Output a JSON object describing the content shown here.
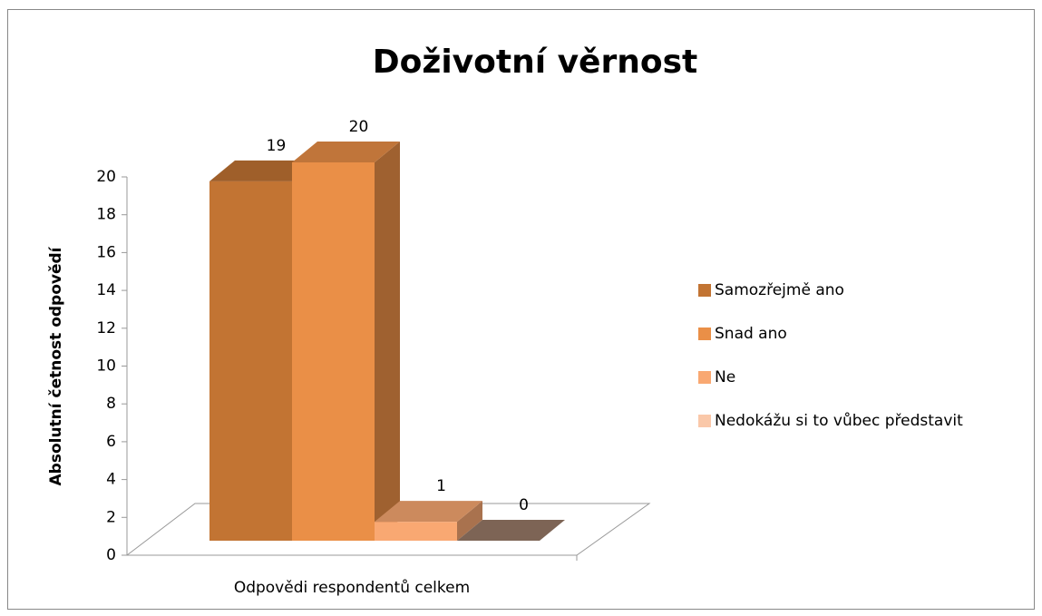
{
  "chart_data": {
    "type": "bar3d",
    "title": "Doživotní věrnost",
    "y_label": "Absolutní četnost odpovědí",
    "categories": [
      "Odpovědi respondentů celkem"
    ],
    "series": [
      {
        "name": "Samozřejmě ano",
        "color": "#c27433",
        "values": [
          19
        ]
      },
      {
        "name": "Snad ano",
        "color": "#ea8f47",
        "values": [
          20
        ]
      },
      {
        "name": "Ne",
        "color": "#f9a872",
        "values": [
          1
        ]
      },
      {
        "name": "Nedokážu si to vůbec představit",
        "color": "#fac8a9",
        "values": [
          0
        ]
      }
    ],
    "ylim": [
      0,
      20
    ],
    "yticks": [
      0,
      2,
      4,
      6,
      8,
      10,
      12,
      14,
      16,
      18,
      20
    ],
    "legend": "right"
  }
}
